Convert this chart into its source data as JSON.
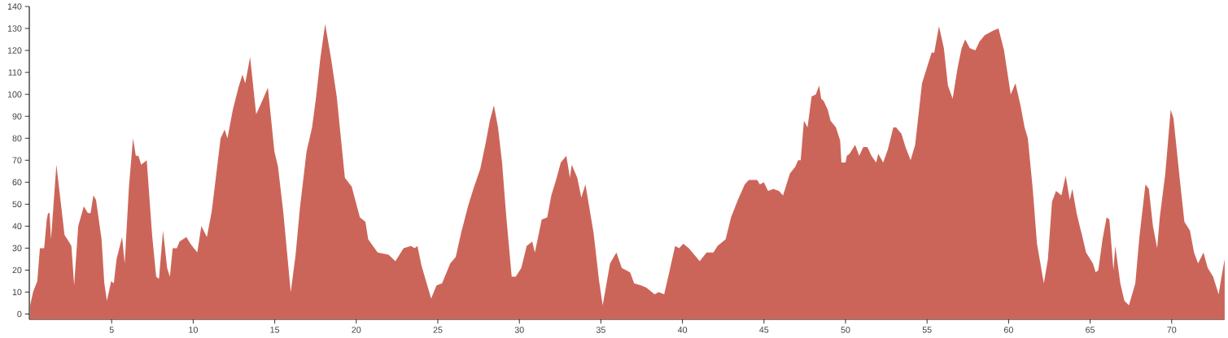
{
  "chart_data": {
    "type": "area",
    "color": "#cc6559",
    "xlim": [
      -0.05,
      73.25
    ],
    "ylim": [
      -2.4,
      140
    ],
    "xticks": [
      5,
      10,
      15,
      20,
      25,
      30,
      35,
      40,
      45,
      50,
      55,
      60,
      65,
      70
    ],
    "yticks": [
      0,
      10,
      20,
      30,
      40,
      50,
      60,
      70,
      80,
      90,
      100,
      110,
      120,
      130,
      140
    ],
    "x": [
      0,
      0.18,
      0.44,
      0.6,
      0.86,
      1.02,
      1.1,
      1.19,
      1.28,
      1.36,
      1.61,
      1.86,
      2.11,
      2.37,
      2.53,
      2.7,
      2.95,
      3.29,
      3.54,
      3.71,
      3.88,
      4.04,
      4.38,
      4.55,
      4.71,
      4.97,
      5.13,
      5.3,
      5.64,
      5.8,
      6.06,
      6.31,
      6.48,
      6.64,
      6.81,
      7.15,
      7.48,
      7.73,
      7.9,
      8.15,
      8.4,
      8.57,
      8.74,
      9.0,
      9.16,
      9.58,
      9.83,
      10.25,
      10.5,
      10.84,
      11.14,
      11.68,
      11.93,
      12.1,
      12.43,
      12.77,
      13.02,
      13.19,
      13.49,
      13.86,
      14.11,
      14.58,
      14.98,
      15.2,
      15.53,
      15.98,
      16.28,
      16.54,
      16.95,
      17.29,
      17.54,
      17.79,
      18.09,
      18.46,
      18.8,
      19.3,
      19.72,
      20.22,
      20.56,
      20.73,
      21.31,
      21.98,
      22.4,
      22.9,
      23.35,
      23.58,
      23.75,
      24.0,
      24.59,
      24.92,
      25.26,
      25.76,
      26.1,
      26.43,
      26.85,
      27.18,
      27.6,
      27.94,
      28.19,
      28.44,
      28.69,
      28.94,
      29.19,
      29.53,
      29.78,
      30.12,
      30.45,
      30.79,
      30.95,
      31.12,
      31.37,
      31.71,
      31.96,
      32.29,
      32.54,
      32.88,
      33.1,
      33.21,
      33.55,
      33.8,
      34.05,
      34.55,
      34.89,
      35.11,
      35.56,
      35.95,
      36.28,
      36.79,
      37.04,
      37.46,
      37.79,
      38.29,
      38.55,
      38.88,
      39.13,
      39.55,
      39.8,
      40.05,
      40.39,
      41.06,
      41.48,
      41.9,
      42.15,
      42.65,
      42.98,
      43.4,
      43.82,
      44.07,
      44.58,
      44.75,
      44.99,
      45.25,
      45.58,
      45.91,
      46.17,
      46.59,
      46.92,
      47.09,
      47.25,
      47.45,
      47.67,
      47.92,
      48.18,
      48.38,
      48.51,
      48.66,
      48.91,
      49.08,
      49.41,
      49.67,
      49.75,
      50.0,
      50.08,
      50.25,
      50.59,
      50.84,
      51.09,
      51.34,
      51.59,
      51.88,
      52.01,
      52.31,
      52.6,
      52.93,
      53.1,
      53.43,
      53.68,
      53.99,
      54.27,
      54.69,
      54.94,
      55.28,
      55.44,
      55.73,
      56.03,
      56.28,
      56.57,
      56.87,
      57.12,
      57.34,
      57.62,
      57.96,
      58.21,
      58.54,
      59.05,
      59.38,
      59.72,
      60.13,
      60.42,
      60.73,
      60.98,
      61.18,
      61.48,
      61.74,
      62.16,
      62.41,
      62.66,
      62.91,
      63.24,
      63.5,
      63.75,
      63.91,
      64.17,
      64.33,
      64.5,
      64.75,
      65.17,
      65.34,
      65.5,
      65.76,
      66.01,
      66.18,
      66.43,
      66.54,
      66.85,
      67.1,
      67.38,
      67.77,
      68.02,
      68.39,
      68.6,
      68.85,
      69.11,
      69.27,
      69.61,
      69.94,
      70.11,
      70.53,
      70.78,
      71.12,
      71.37,
      71.62,
      71.95,
      72.21,
      72.54,
      72.88,
      73.08,
      73.25
    ],
    "values": [
      4,
      10,
      15,
      30,
      30,
      43,
      46,
      46,
      34,
      42,
      68,
      52,
      36,
      33,
      31,
      13,
      40,
      49,
      46,
      46,
      54,
      52,
      34,
      14,
      6,
      15,
      14,
      25,
      35,
      23,
      58,
      80,
      72,
      72,
      68,
      70,
      36,
      17,
      16,
      38,
      21,
      17,
      30,
      30,
      33,
      35,
      32,
      28,
      40,
      35,
      47,
      80,
      84,
      80,
      93,
      103,
      109,
      105,
      117,
      91,
      95,
      103,
      74,
      67,
      46,
      10,
      27,
      48,
      74,
      85,
      99,
      116,
      132,
      116,
      99,
      62,
      58,
      44,
      42,
      34,
      28,
      27,
      24,
      30,
      31,
      30,
      31,
      22,
      7,
      13,
      14,
      23,
      26,
      37,
      49,
      57,
      66,
      78,
      88,
      95,
      85,
      69,
      45,
      17,
      17,
      21,
      31,
      33,
      28,
      34,
      43,
      44,
      54,
      62,
      69,
      72,
      62,
      68,
      62,
      53,
      59,
      37,
      15,
      4,
      23,
      28,
      21,
      19,
      14,
      13,
      12,
      9,
      10,
      9,
      17,
      31,
      30,
      32,
      30,
      24,
      28,
      28,
      31,
      34,
      44,
      52,
      59,
      61,
      61,
      59,
      60,
      56,
      57,
      56,
      54,
      64,
      67,
      70,
      70,
      88,
      85,
      99,
      100,
      104,
      98,
      97,
      93,
      88,
      85,
      79,
      69,
      69,
      72,
      73,
      77,
      72,
      76,
      76,
      72,
      69,
      73,
      69,
      75,
      85,
      85,
      82,
      76,
      70,
      77,
      105,
      111,
      119,
      119,
      131,
      121,
      104,
      98,
      112,
      121,
      125,
      121,
      120,
      124,
      127,
      129,
      130,
      120,
      100,
      105,
      95,
      85,
      80,
      57,
      32,
      14,
      25,
      51,
      56,
      54,
      63,
      52,
      57,
      46,
      41,
      36,
      28,
      23,
      19,
      20,
      34,
      44,
      43,
      20,
      31,
      14,
      6,
      4,
      14,
      35,
      59,
      57,
      40,
      30,
      44,
      64,
      93,
      89,
      59,
      42,
      38,
      28,
      23,
      28,
      21,
      17,
      9,
      18,
      25
    ]
  }
}
